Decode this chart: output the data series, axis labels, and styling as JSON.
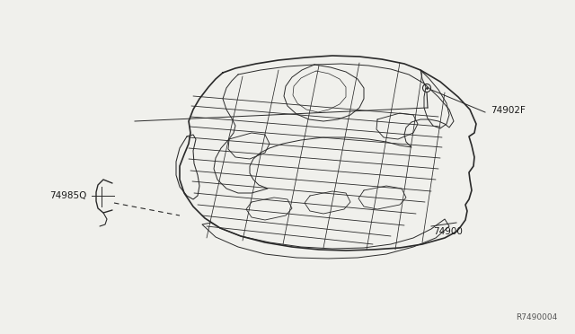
{
  "bg_color": "#f0f0ec",
  "line_color": "#2a2a2a",
  "label_color": "#1a1a1a",
  "ref_color": "#555555",
  "part_number_ref": "R7490004",
  "figsize": [
    6.4,
    3.72
  ],
  "dpi": 100
}
